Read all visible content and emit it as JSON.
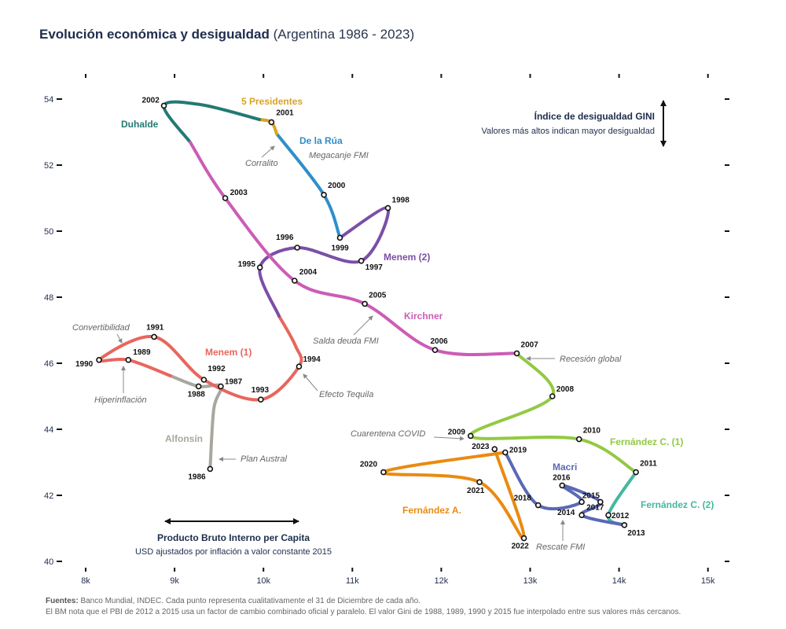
{
  "title": {
    "main": "Evolución económica y desigualdad",
    "sub": "(Argentina 1986 - 2023)"
  },
  "footnote": {
    "label": "Fuentes:",
    "line1": "Banco Mundial, INDEC. Cada punto representa cualitativamente el 31 de Diciembre de cada año.",
    "line2": "El BM nota que el PBI de 2012 a 2015 usa un factor de cambio combinado oficial y paralelo. El valor Gini de 1988, 1989, 1990 y 2015 fue interpolado entre sus valores más cercanos."
  },
  "chart_data": {
    "type": "line",
    "x_ticks": [
      8000,
      9000,
      10000,
      11000,
      12000,
      13000,
      14000,
      15000
    ],
    "x_tick_labels": [
      "8k",
      "9k",
      "10k",
      "11k",
      "12k",
      "13k",
      "14k",
      "15k"
    ],
    "y_ticks": [
      40,
      42,
      44,
      46,
      48,
      50,
      52,
      54
    ],
    "y_tick_labels": [
      "40",
      "42",
      "44",
      "46",
      "48",
      "50",
      "52",
      "54"
    ],
    "xlim": [
      8000,
      15000
    ],
    "ylim": [
      40,
      55.2
    ],
    "grid": false,
    "x_axis_label": {
      "title": "Producto Bruto Interno per Capita",
      "sub": "USD ajustados por inflación a valor constante 2015"
    },
    "y_axis_label": {
      "title": "Índice de desigualdad GINI",
      "sub": "Valores más altos indican mayor desigualdad"
    },
    "points": [
      {
        "year": "1986",
        "x": 9400,
        "y": 42.8
      },
      {
        "year": "1987",
        "x": 9520,
        "y": 45.3
      },
      {
        "year": "1988",
        "x": 9270,
        "y": 45.3
      },
      {
        "year": "1989",
        "x": 8480,
        "y": 46.1
      },
      {
        "year": "1990",
        "x": 8150,
        "y": 46.1
      },
      {
        "year": "1991",
        "x": 8770,
        "y": 46.8
      },
      {
        "year": "1992",
        "x": 9330,
        "y": 45.5
      },
      {
        "year": "1993",
        "x": 9970,
        "y": 44.9
      },
      {
        "year": "1994",
        "x": 10400,
        "y": 45.9
      },
      {
        "year": "1995",
        "x": 9960,
        "y": 48.9
      },
      {
        "year": "1996",
        "x": 10380,
        "y": 49.5
      },
      {
        "year": "1997",
        "x": 11100,
        "y": 49.1
      },
      {
        "year": "1998",
        "x": 11400,
        "y": 50.7
      },
      {
        "year": "1999",
        "x": 10860,
        "y": 49.8
      },
      {
        "year": "2000",
        "x": 10680,
        "y": 51.1
      },
      {
        "year": "2001",
        "x": 10090,
        "y": 53.3
      },
      {
        "year": "2002",
        "x": 8880,
        "y": 53.8
      },
      {
        "year": "2003",
        "x": 9570,
        "y": 51.0
      },
      {
        "year": "2004",
        "x": 10350,
        "y": 48.5
      },
      {
        "year": "2005",
        "x": 11140,
        "y": 47.8
      },
      {
        "year": "2006",
        "x": 11930,
        "y": 46.4
      },
      {
        "year": "2007",
        "x": 12850,
        "y": 46.3
      },
      {
        "year": "2008",
        "x": 13250,
        "y": 45.0
      },
      {
        "year": "2009",
        "x": 12330,
        "y": 43.8
      },
      {
        "year": "2010",
        "x": 13550,
        "y": 43.7
      },
      {
        "year": "2011",
        "x": 14190,
        "y": 42.7
      },
      {
        "year": "2012",
        "x": 13880,
        "y": 41.4
      },
      {
        "year": "2013",
        "x": 14060,
        "y": 41.1
      },
      {
        "year": "2014",
        "x": 13580,
        "y": 41.4
      },
      {
        "year": "2015",
        "x": 13790,
        "y": 41.8
      },
      {
        "year": "2016",
        "x": 13360,
        "y": 42.3
      },
      {
        "year": "2017",
        "x": 13580,
        "y": 41.8
      },
      {
        "year": "2018",
        "x": 13090,
        "y": 41.7
      },
      {
        "year": "2019",
        "x": 12720,
        "y": 43.3
      },
      {
        "year": "2020",
        "x": 11350,
        "y": 42.7
      },
      {
        "year": "2021",
        "x": 12430,
        "y": 42.4
      },
      {
        "year": "2022",
        "x": 12930,
        "y": 40.7
      },
      {
        "year": "2023",
        "x": 12600,
        "y": 43.4
      }
    ],
    "series": [
      {
        "name": "Alfonsín",
        "color": "#a9a79c",
        "years": [
          "1986",
          "1987",
          "1988"
        ]
      },
      {
        "name": "Menem (1)",
        "color": "#e8665d",
        "years": [
          "1989",
          "1990",
          "1991",
          "1992",
          "1993",
          "1994"
        ]
      },
      {
        "name": "Menem (2)",
        "color": "#7b4fa6",
        "years": [
          "1995",
          "1996",
          "1997",
          "1998",
          "1999"
        ]
      },
      {
        "name": "De la Rúa",
        "color": "#2f8fc9",
        "years": [
          "2000",
          "2001"
        ]
      },
      {
        "name": "5 Presidentes",
        "color": "#d8a325",
        "years": []
      },
      {
        "name": "Duhalde",
        "color": "#227a73",
        "years": [
          "2002"
        ]
      },
      {
        "name": "Kirchner",
        "color": "#cc5cb6",
        "years": [
          "2003",
          "2004",
          "2005",
          "2006"
        ]
      },
      {
        "name": "Fernández C. (1)",
        "color": "#93c943",
        "years": [
          "2007",
          "2008",
          "2009",
          "2010"
        ]
      },
      {
        "name": "Fernández C. (2)",
        "color": "#44b89c",
        "years": [
          "2011",
          "2012",
          "2013"
        ]
      },
      {
        "name": "Macri",
        "color": "#5b68b5",
        "years": [
          "2014",
          "2015",
          "2016",
          "2017",
          "2018"
        ]
      },
      {
        "name": "Fernández A.",
        "color": "#e98b12",
        "years": [
          "2019",
          "2020",
          "2021",
          "2022",
          "2023"
        ]
      }
    ],
    "annotations": [
      "Convertibilidad",
      "Hiperinflación",
      "Plan Austral",
      "Efecto Tequila",
      "Corralito",
      "Megacanje FMI",
      "Salda deuda FMI",
      "Recesión global",
      "Cuarentena COVID",
      "Rescate FMI"
    ]
  }
}
